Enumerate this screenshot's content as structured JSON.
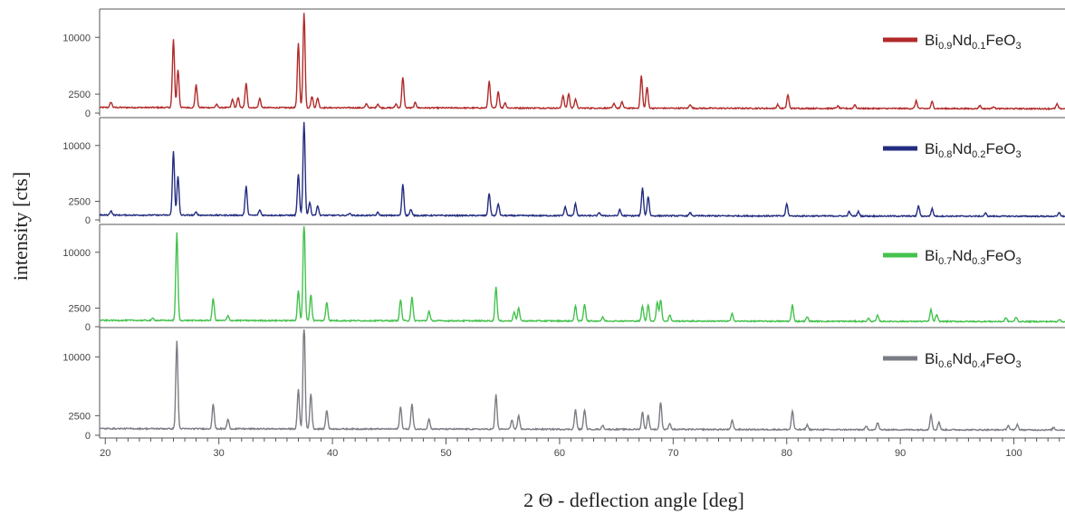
{
  "chart_data": {
    "type": "line",
    "ylabel": "intensity [cts]",
    "xlabel": "2 Θ -   deflection angle [deg]",
    "xlim": [
      19.5,
      104.5
    ],
    "x_ticks": [
      20,
      30,
      40,
      50,
      60,
      70,
      80,
      90,
      100
    ],
    "y_ticks": [
      0,
      2500,
      10000
    ],
    "ylim": [
      0,
      13500
    ],
    "grid": false,
    "legend_placement": "top-right",
    "panels": [
      {
        "series_name": "Bi0.9Nd0.1FeO3",
        "legend": {
          "parts": [
            [
              "Bi",
              ""
            ],
            [
              "0.9",
              "sub"
            ],
            [
              "Nd",
              ""
            ],
            [
              "0.1",
              "sub"
            ],
            [
              "FeO",
              ""
            ],
            [
              "3",
              "sub"
            ]
          ]
        },
        "color": "#b22a2a",
        "baseline": 750,
        "peaks": [
          [
            20.5,
            700
          ],
          [
            26.0,
            9000
          ],
          [
            26.4,
            5000
          ],
          [
            28.0,
            3000
          ],
          [
            29.8,
            400
          ],
          [
            31.2,
            1100
          ],
          [
            31.7,
            1300
          ],
          [
            32.4,
            3200
          ],
          [
            33.6,
            1200
          ],
          [
            37.0,
            8500
          ],
          [
            37.5,
            12500
          ],
          [
            38.2,
            1500
          ],
          [
            38.7,
            1300
          ],
          [
            43.0,
            500
          ],
          [
            44.0,
            500
          ],
          [
            45.6,
            500
          ],
          [
            46.2,
            4000
          ],
          [
            47.3,
            700
          ],
          [
            53.8,
            3500
          ],
          [
            54.6,
            2200
          ],
          [
            55.2,
            700
          ],
          [
            60.3,
            1700
          ],
          [
            60.8,
            1900
          ],
          [
            61.4,
            1200
          ],
          [
            64.8,
            600
          ],
          [
            65.5,
            800
          ],
          [
            67.2,
            4300
          ],
          [
            67.7,
            2800
          ],
          [
            71.5,
            500
          ],
          [
            79.2,
            500
          ],
          [
            80.1,
            1800
          ],
          [
            84.5,
            300
          ],
          [
            86.0,
            500
          ],
          [
            91.4,
            1000
          ],
          [
            92.8,
            900
          ],
          [
            97.0,
            400
          ],
          [
            98.2,
            300
          ],
          [
            103.8,
            600
          ]
        ]
      },
      {
        "series_name": "Bi0.8Nd0.2FeO3",
        "legend": {
          "parts": [
            [
              "Bi",
              ""
            ],
            [
              "0.8",
              "sub"
            ],
            [
              "Nd",
              ""
            ],
            [
              "0.2",
              "sub"
            ],
            [
              "FeO",
              ""
            ],
            [
              "3",
              "sub"
            ]
          ]
        },
        "color": "#232d80",
        "baseline": 650,
        "peaks": [
          [
            20.5,
            600
          ],
          [
            26.0,
            8600
          ],
          [
            26.4,
            5200
          ],
          [
            28.0,
            400
          ],
          [
            32.4,
            3900
          ],
          [
            33.6,
            700
          ],
          [
            37.0,
            5500
          ],
          [
            37.5,
            12500
          ],
          [
            38.0,
            1800
          ],
          [
            38.7,
            1300
          ],
          [
            41.5,
            300
          ],
          [
            44.0,
            400
          ],
          [
            46.2,
            4200
          ],
          [
            46.9,
            800
          ],
          [
            53.8,
            3000
          ],
          [
            54.6,
            1600
          ],
          [
            60.5,
            1200
          ],
          [
            61.4,
            1600
          ],
          [
            63.5,
            400
          ],
          [
            65.3,
            800
          ],
          [
            67.3,
            3700
          ],
          [
            67.8,
            2600
          ],
          [
            71.5,
            400
          ],
          [
            80.0,
            1600
          ],
          [
            85.5,
            600
          ],
          [
            86.3,
            600
          ],
          [
            91.6,
            1400
          ],
          [
            92.8,
            1000
          ],
          [
            97.5,
            400
          ],
          [
            104.0,
            500
          ]
        ]
      },
      {
        "series_name": "Bi0.7Nd0.3FeO3",
        "legend": {
          "parts": [
            [
              "Bi",
              ""
            ],
            [
              "0.7",
              "sub"
            ],
            [
              "Nd",
              ""
            ],
            [
              "0.3",
              "sub"
            ],
            [
              "FeO",
              ""
            ],
            [
              "3",
              "sub"
            ]
          ]
        },
        "color": "#45c24e",
        "baseline": 850,
        "peaks": [
          [
            24.2,
            300
          ],
          [
            26.3,
            11800
          ],
          [
            29.5,
            3000
          ],
          [
            30.8,
            600
          ],
          [
            37.0,
            4000
          ],
          [
            37.5,
            13500
          ],
          [
            38.1,
            3500
          ],
          [
            39.5,
            2500
          ],
          [
            46.0,
            2800
          ],
          [
            47.0,
            3200
          ],
          [
            48.5,
            1300
          ],
          [
            54.4,
            4600
          ],
          [
            56.0,
            1200
          ],
          [
            56.4,
            1700
          ],
          [
            61.4,
            2000
          ],
          [
            62.2,
            2300
          ],
          [
            63.8,
            500
          ],
          [
            67.3,
            2000
          ],
          [
            67.8,
            2200
          ],
          [
            68.6,
            2600
          ],
          [
            68.9,
            2900
          ],
          [
            69.7,
            800
          ],
          [
            75.2,
            1000
          ],
          [
            80.5,
            2200
          ],
          [
            81.8,
            600
          ],
          [
            87.2,
            400
          ],
          [
            88.0,
            800
          ],
          [
            92.7,
            1600
          ],
          [
            93.2,
            900
          ],
          [
            99.3,
            500
          ],
          [
            100.2,
            600
          ],
          [
            104.0,
            300
          ]
        ]
      },
      {
        "series_name": "Bi0.6Nd0.4FeO3",
        "legend": {
          "parts": [
            [
              "Bi",
              ""
            ],
            [
              "0.6",
              "sub"
            ],
            [
              "Nd",
              ""
            ],
            [
              "0.4",
              "sub"
            ],
            [
              "FeO",
              ""
            ],
            [
              "3",
              "sub"
            ]
          ]
        },
        "color": "#7b7d85",
        "baseline": 850,
        "peaks": [
          [
            26.3,
            11200
          ],
          [
            29.5,
            3200
          ],
          [
            30.8,
            1200
          ],
          [
            37.0,
            5000
          ],
          [
            37.5,
            13800
          ],
          [
            38.1,
            4500
          ],
          [
            39.5,
            2400
          ],
          [
            46.0,
            2800
          ],
          [
            47.0,
            3200
          ],
          [
            48.5,
            1300
          ],
          [
            54.4,
            4400
          ],
          [
            55.8,
            1200
          ],
          [
            56.4,
            1700
          ],
          [
            61.4,
            2500
          ],
          [
            62.2,
            2500
          ],
          [
            63.8,
            500
          ],
          [
            67.3,
            2200
          ],
          [
            67.8,
            1800
          ],
          [
            68.9,
            3500
          ],
          [
            69.7,
            800
          ],
          [
            75.2,
            1200
          ],
          [
            80.5,
            2400
          ],
          [
            81.8,
            600
          ],
          [
            87.0,
            400
          ],
          [
            88.0,
            900
          ],
          [
            92.7,
            2000
          ],
          [
            93.4,
            1000
          ],
          [
            99.5,
            600
          ],
          [
            100.3,
            700
          ],
          [
            103.5,
            300
          ]
        ]
      }
    ]
  }
}
